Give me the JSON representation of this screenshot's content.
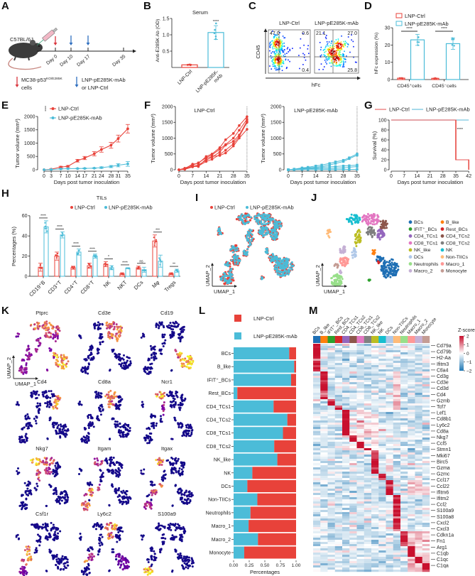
{
  "panel_labels": [
    "A",
    "B",
    "C",
    "D",
    "E",
    "F",
    "G",
    "H",
    "I",
    "J",
    "K",
    "L",
    "M"
  ],
  "colors": {
    "ctrl": "#e8423a",
    "mab": "#4bbcd8",
    "ctrl_light": "#ef8f8f",
    "mab_light": "#8fd0e6"
  },
  "panel_a": {
    "strain": "C57BL/6J",
    "days": [
      "Day 0",
      "Day 10",
      "Day 17",
      "Day 35"
    ],
    "legend_cells": "MC38-p53",
    "legend_cells_sup": "KO/E285K",
    "legend_cells_2": "cells",
    "legend_treat": "LNP-pE285K-mAb",
    "legend_treat_2": "or LNP-Ctrl",
    "arrow_colors": {
      "cells": "#d9363e",
      "treat": "#2f6fbf"
    }
  },
  "chart_data": [
    {
      "panel": "B",
      "type": "bar",
      "title": "Serum",
      "ylabel": "Anti-E285K Ab (OD)",
      "ylim": [
        0,
        1.5
      ],
      "yticks": [
        "0.5",
        "1.0",
        "1.5"
      ],
      "category_lines": [
        [
          "LNP-Ctrl"
        ],
        [
          "LNP-pE285K-",
          "mAb"
        ]
      ],
      "values": [
        0.08,
        1.07
      ],
      "errors": [
        0.01,
        0.21
      ],
      "points": [
        [
          0.07,
          0.08,
          0.09,
          0.08,
          0.085
        ],
        [
          0.87,
          0.95,
          1.05,
          1.15,
          1.35
        ]
      ],
      "significance": "****"
    },
    {
      "panel": "C",
      "type": "scatter",
      "xlabel": "hFc",
      "ylabel": "CD45",
      "plots": [
        {
          "title": "LNP-Ctrl",
          "quadrants": {
            "ul": "47.0",
            "ur": "0.6",
            "lr": "0.4"
          }
        },
        {
          "title": "LNP-pE285K-mAb",
          "quadrants": {
            "ul": "21.1",
            "ur": "27.0",
            "lr": "25.8"
          }
        }
      ]
    },
    {
      "panel": "D",
      "type": "bar",
      "ylabel": "hFc expression (%)",
      "ylim": [
        0,
        30
      ],
      "yticks": [
        "0",
        "10",
        "20",
        "30"
      ],
      "categories": [
        "CD45⁺cells",
        "CD45⁻cells"
      ],
      "series": [
        {
          "name": "LNP-Ctrl",
          "values": [
            0.8,
            0.7
          ],
          "errors": [
            0.2,
            0.2
          ]
        },
        {
          "name": "LNP-pE285K-mAb",
          "values": [
            23,
            20.8
          ],
          "errors": [
            3.2,
            3.3
          ]
        }
      ],
      "significance": [
        "****",
        "****"
      ]
    },
    {
      "panel": "E",
      "type": "line",
      "xlabel": "Days post tumor inoculation",
      "ylabel": "Tumor volume (mm³)",
      "x": [
        0,
        3,
        7,
        10,
        14,
        17,
        21,
        24,
        28,
        31,
        35
      ],
      "xticks": [
        "0",
        "3",
        "7",
        "10",
        "14",
        "17",
        "21",
        "24",
        "28",
        "31",
        "35"
      ],
      "ylim": [
        0,
        2000
      ],
      "yticks": [
        "0",
        "500",
        "1000",
        "1500",
        "2000"
      ],
      "series": [
        {
          "name": "LNP-Ctrl",
          "values": [
            0,
            20,
            100,
            130,
            340,
            440,
            600,
            760,
            920,
            1170,
            1540
          ],
          "errors": [
            0,
            10,
            30,
            30,
            50,
            60,
            80,
            100,
            110,
            130,
            160
          ]
        },
        {
          "name": "LNP-pE285K-mAb",
          "values": [
            0,
            10,
            30,
            40,
            45,
            50,
            60,
            80,
            120,
            170,
            220
          ],
          "errors": [
            0,
            5,
            10,
            10,
            10,
            15,
            15,
            30,
            40,
            60,
            90
          ]
        }
      ],
      "significance": "****"
    },
    {
      "panel": "F",
      "type": "line",
      "xlabel": "Days post tumor inoculation",
      "ylabel": "Tumor volume (mm³)",
      "x": [
        0,
        3,
        7,
        10,
        14,
        17,
        21,
        24,
        28,
        31,
        35
      ],
      "xticks": [
        "0",
        "7",
        "14",
        "21",
        "28",
        "35"
      ],
      "ylim": [
        0,
        2000
      ],
      "yticks": [
        "0",
        "500",
        "1000",
        "1500",
        "2000"
      ],
      "plots": [
        {
          "title": "LNP-Ctrl",
          "mice": [
            [
              0,
              30,
              180,
              200,
              420,
              500,
              700,
              950,
              1150,
              1400,
              1680
            ],
            [
              0,
              50,
              150,
              220,
              380,
              470,
              650,
              800,
              1000,
              1250,
              1600
            ],
            [
              0,
              20,
              120,
              150,
              300,
              400,
              560,
              780,
              900,
              1100,
              1540
            ],
            [
              0,
              10,
              90,
              120,
              260,
              330,
              480,
              620,
              820,
              1050,
              1500
            ],
            [
              0,
              40,
              100,
              100,
              350,
              420,
              450,
              530,
              750,
              1000,
              1280
            ]
          ]
        },
        {
          "title": "LNP-pE285K-mAb",
          "mice": [
            [
              0,
              20,
              60,
              80,
              120,
              150,
              200,
              250,
              300,
              380,
              500
            ],
            [
              0,
              10,
              40,
              60,
              80,
              100,
              150,
              200,
              260,
              350,
              460
            ],
            [
              0,
              20,
              30,
              50,
              60,
              80,
              90,
              100,
              120,
              130,
              150
            ],
            [
              0,
              5,
              20,
              30,
              30,
              40,
              40,
              50,
              60,
              80,
              100
            ],
            [
              0,
              0,
              5,
              5,
              5,
              5,
              5,
              5,
              10,
              10,
              10
            ]
          ]
        }
      ]
    },
    {
      "panel": "G",
      "type": "line",
      "xlabel": "Days post tumor inoculation",
      "ylabel": "Survival (%)",
      "xticks": [
        "0",
        "7",
        "14",
        "21",
        "28",
        "35",
        "42"
      ],
      "yticks": [
        "0",
        "20",
        "40",
        "60",
        "80",
        "100"
      ],
      "xlim": [
        0,
        42
      ],
      "ylim": [
        0,
        100
      ],
      "series": [
        {
          "name": "LNP-Ctrl",
          "steps": [
            [
              0,
              100
            ],
            [
              35,
              100
            ],
            [
              35,
              20
            ],
            [
              42,
              20
            ],
            [
              42,
              0
            ]
          ]
        },
        {
          "name": "LNP-pE285K-mAb",
          "steps": [
            [
              0,
              100
            ],
            [
              42,
              100
            ]
          ]
        }
      ],
      "significance": "****"
    },
    {
      "panel": "H",
      "type": "bar",
      "title": "TILs",
      "ylabel": "Percentages (%)",
      "ylim": [
        0,
        60
      ],
      "yticks": [
        "0",
        "20",
        "40",
        "60"
      ],
      "categories": [
        "CD19⁺B",
        "CD3⁺T",
        "CD4⁺T",
        "CD8⁺T",
        "NK",
        "NKT",
        "DCs",
        "Mφ",
        "Tregs"
      ],
      "series": [
        {
          "name": "LNP-Ctrl",
          "values": [
            9,
            20,
            8.5,
            10.5,
            12,
            2.5,
            8.5,
            35,
            2.5
          ],
          "errors": [
            4,
            4,
            1.5,
            2.5,
            2.5,
            1,
            1.5,
            6,
            1
          ]
        },
        {
          "name": "LNP-pE285K-mAb",
          "values": [
            49,
            41,
            24,
            20,
            8.5,
            8,
            6.5,
            15,
            5.5
          ],
          "errors": [
            6,
            3,
            3,
            2,
            2,
            0.5,
            2.5,
            6,
            1.5
          ]
        }
      ],
      "significance": [
        "****",
        "****",
        "****",
        "****",
        "*",
        "****",
        "ns",
        "***",
        "**"
      ]
    },
    {
      "panel": "I",
      "type": "scatter",
      "xlabel": "UMAP_1",
      "ylabel": "UMAP_2",
      "legend": [
        "LNP-Ctrl",
        "LNP-pE285K-mAb"
      ]
    },
    {
      "panel": "J",
      "type": "scatter",
      "xlabel": "UMAP_1",
      "ylabel": "UMAP_2",
      "clusters": [
        {
          "name": "BCs",
          "color": "#1f6fb4"
        },
        {
          "name": "B_like",
          "color": "#ff7f0e"
        },
        {
          "name": "IFIT⁺_BCs",
          "color": "#2ca02c"
        },
        {
          "name": "Rest_BCs",
          "color": "#d62728"
        },
        {
          "name": "CD4_TCs1",
          "color": "#9467bd"
        },
        {
          "name": "CD4_TCs2",
          "color": "#8c564b"
        },
        {
          "name": "CD8_TCs1",
          "color": "#e377c2"
        },
        {
          "name": "CD8_TCs2",
          "color": "#7f7f7f"
        },
        {
          "name": "NK_like",
          "color": "#bcbd22"
        },
        {
          "name": "NK",
          "color": "#17becf"
        },
        {
          "name": "DCs",
          "color": "#aec7e8"
        },
        {
          "name": "Non-TIICs",
          "color": "#ffbb78"
        },
        {
          "name": "Neutrophils",
          "color": "#98df8a"
        },
        {
          "name": "Macro_1",
          "color": "#ff9896"
        },
        {
          "name": "Macro_2",
          "color": "#c5b0d5"
        },
        {
          "name": "Monocyte",
          "color": "#c49c94"
        }
      ]
    },
    {
      "panel": "K",
      "type": "scatter",
      "xlabel": "UMAP_1",
      "ylabel": "UMAP_2",
      "genes": [
        "Ptprc",
        "Cd3e",
        "Cd19",
        "Cd4",
        "Cd8a",
        "Ncr1",
        "Nkg7",
        "Itgam",
        "Itgax",
        "Csf1r",
        "Ly6c2",
        "S100a9"
      ]
    },
    {
      "panel": "L",
      "type": "bar",
      "orientation": "horizontal",
      "stacked": true,
      "xlabel": "Percentages",
      "xticks": [
        "0.00",
        "0.25",
        "0.50",
        "0.75",
        "1.00"
      ],
      "categories": [
        "BCs",
        "B_like",
        "IFIT⁺_BCs",
        "Rest_BCs",
        "CD4_TCs1",
        "CD4_TCs2",
        "CD8_TCs1",
        "CD8_TCs2",
        "NK_like",
        "NK",
        "DCs",
        "Non-TIICs",
        "Neutrophils",
        "Macro_1",
        "Macro_2",
        "Monocyte"
      ],
      "series": [
        {
          "name": "LNP-Ctrl",
          "values": [
            0.11,
            0.03,
            0.08,
            0.94,
            0.36,
            0.14,
            0.21,
            0.35,
            0.3,
            0.7,
            0.78,
            0.62,
            0.73,
            0.76,
            0.61,
            0.83
          ]
        },
        {
          "name": "LNP-pE285K-mAb",
          "values": [
            0.89,
            0.97,
            0.92,
            0.06,
            0.64,
            0.86,
            0.79,
            0.65,
            0.7,
            0.3,
            0.22,
            0.38,
            0.27,
            0.24,
            0.39,
            0.17
          ]
        }
      ]
    },
    {
      "panel": "M",
      "type": "heatmap",
      "columns": [
        "BCs",
        "B_like",
        "IFIT⁺_BCs",
        "Rest_BCs",
        "CD4_TCs1",
        "CD4_TCs2",
        "CD8_TCs1",
        "CD8_TCs2",
        "NK_like",
        "NK",
        "DCs",
        "Non-TIICs",
        "Neutrophils",
        "Macro_1",
        "Macro_2",
        "Monocyte"
      ],
      "genes": [
        "Cd79a",
        "Cd79b",
        "H2-Aa",
        "Ifitm3",
        "Ctla4",
        "Cd3g",
        "Cd3e",
        "Cd3d",
        "Cd4",
        "Gzmb",
        "Tcf7",
        "Lef1",
        "Cd8b1",
        "Ly6c2",
        "Cd8a",
        "Nkg7",
        "Ccl5",
        "Stmn1",
        "Mki67",
        "Birc5",
        "Gzma",
        "Gzmc",
        "Ccl17",
        "Ccl22",
        "Ifitm6",
        "Ifitm2",
        "Ccl2",
        "S100a9",
        "S100a8",
        "Cxcl2",
        "Cxcl3",
        "Cdkn1a",
        "Fn1",
        "Arg1",
        "C1qb",
        "C1qc",
        "C1qa"
      ],
      "legend_title": "Z-score",
      "zlim": [
        -2,
        2
      ],
      "zticks": [
        "2",
        "1",
        "0",
        "−1",
        "−2"
      ]
    }
  ]
}
